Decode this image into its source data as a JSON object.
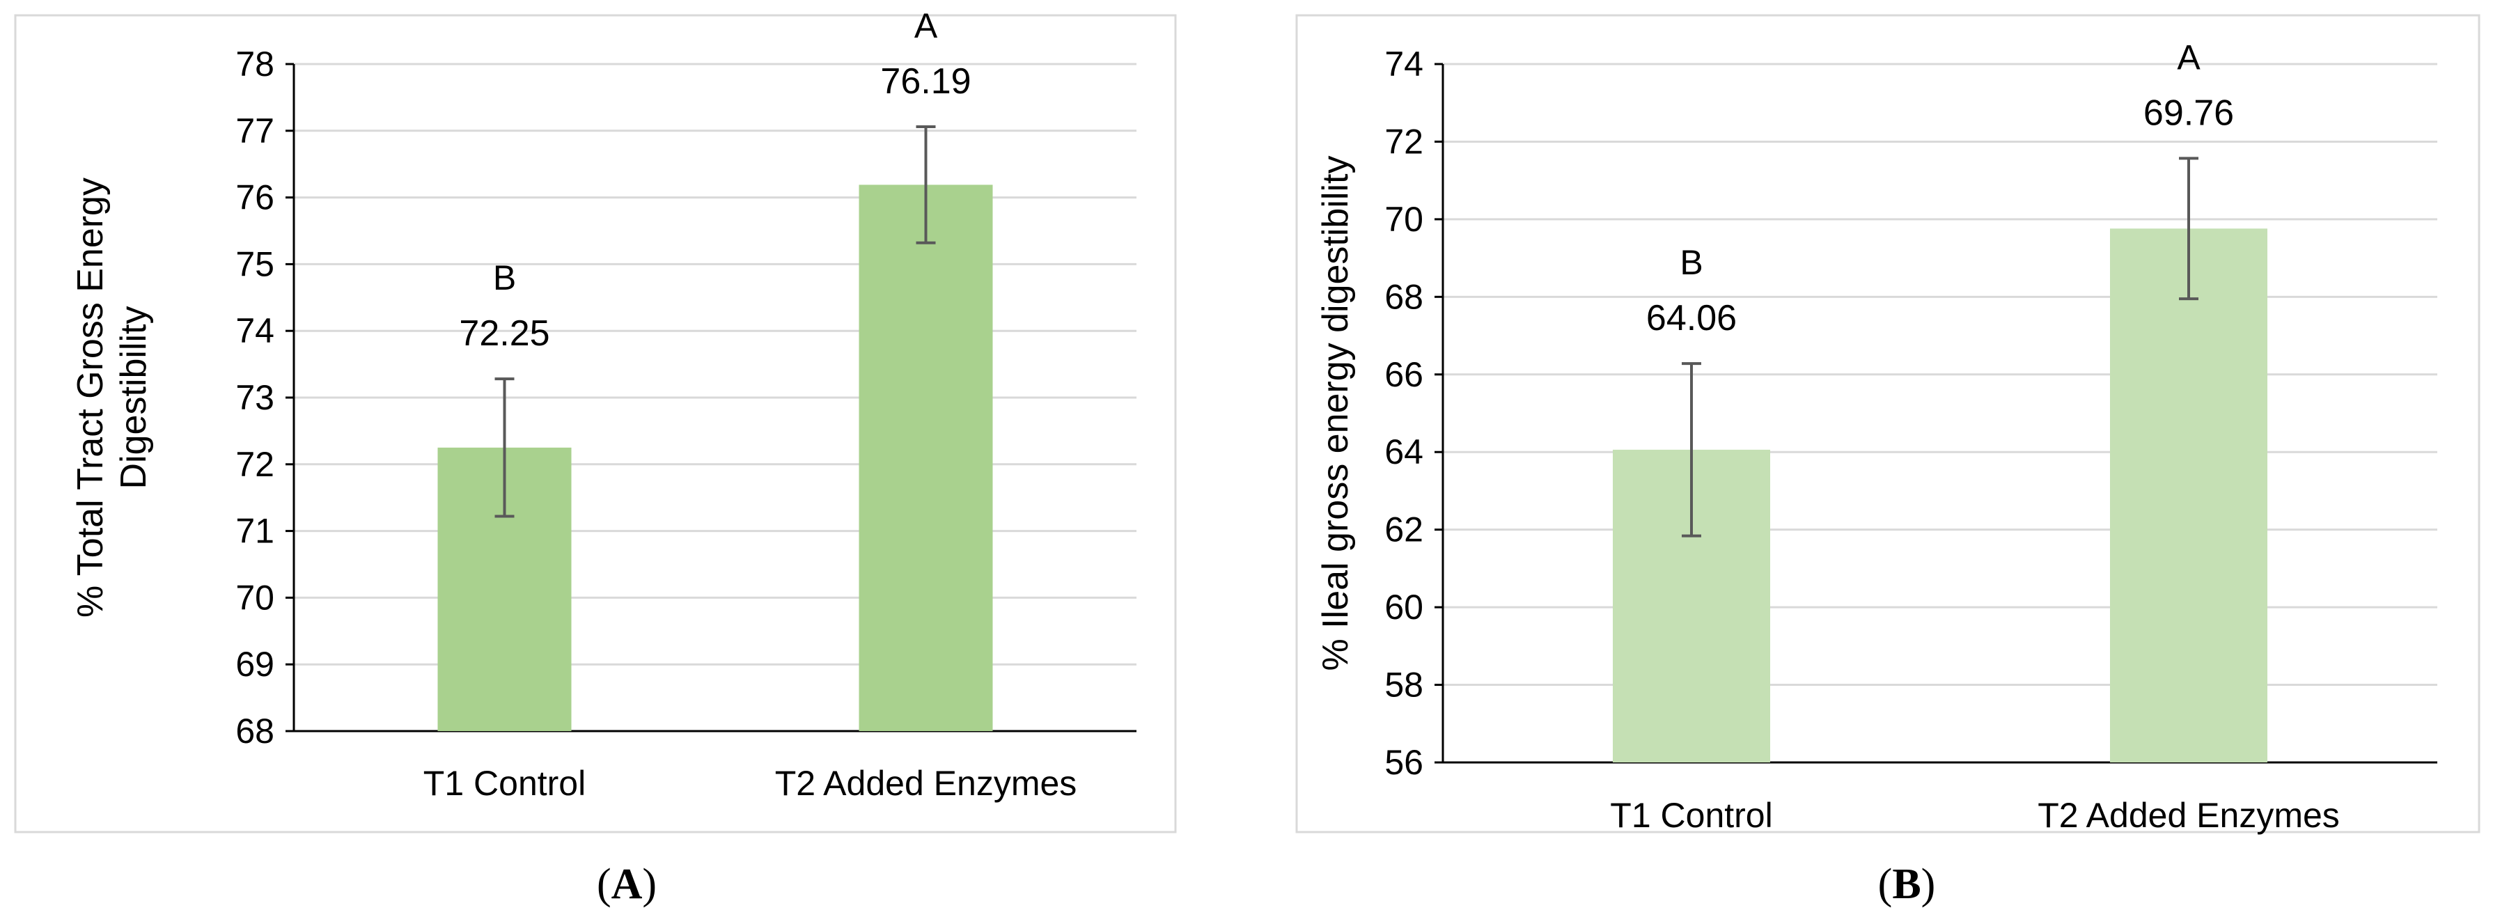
{
  "chart_data": [
    {
      "type": "bar",
      "panel_label": "A",
      "ylabel": "% Total Tract Gross Energy Digestibility",
      "xlabel": "",
      "categories": [
        "T1 Control",
        "T2 Added Enzymes"
      ],
      "values": [
        72.25,
        76.19
      ],
      "error_bars": [
        1.03,
        0.87
      ],
      "value_labels": [
        "72.25",
        "76.19"
      ],
      "significance_letters": [
        "B",
        "A"
      ],
      "ylim": [
        68,
        78
      ],
      "yticks": [
        "68",
        "69",
        "70",
        "71",
        "72",
        "73",
        "74",
        "75",
        "76",
        "77",
        "78"
      ],
      "grid": true,
      "legend": "none",
      "bar_color": "#a9d18e"
    },
    {
      "type": "bar",
      "panel_label": "B",
      "ylabel": "% Ileal gross energy digestibility",
      "xlabel": "",
      "categories": [
        "T1 Control",
        "T2 Added Enzymes"
      ],
      "values": [
        64.06,
        69.76
      ],
      "error_bars": [
        2.22,
        1.81
      ],
      "value_labels": [
        "64.06",
        "69.76"
      ],
      "significance_letters": [
        "B",
        "A"
      ],
      "ylim": [
        56,
        74
      ],
      "yticks": [
        "56",
        "58",
        "60",
        "62",
        "64",
        "66",
        "68",
        "70",
        "72",
        "74"
      ],
      "grid": true,
      "legend": "none",
      "bar_color": "#c5e0b4"
    }
  ]
}
